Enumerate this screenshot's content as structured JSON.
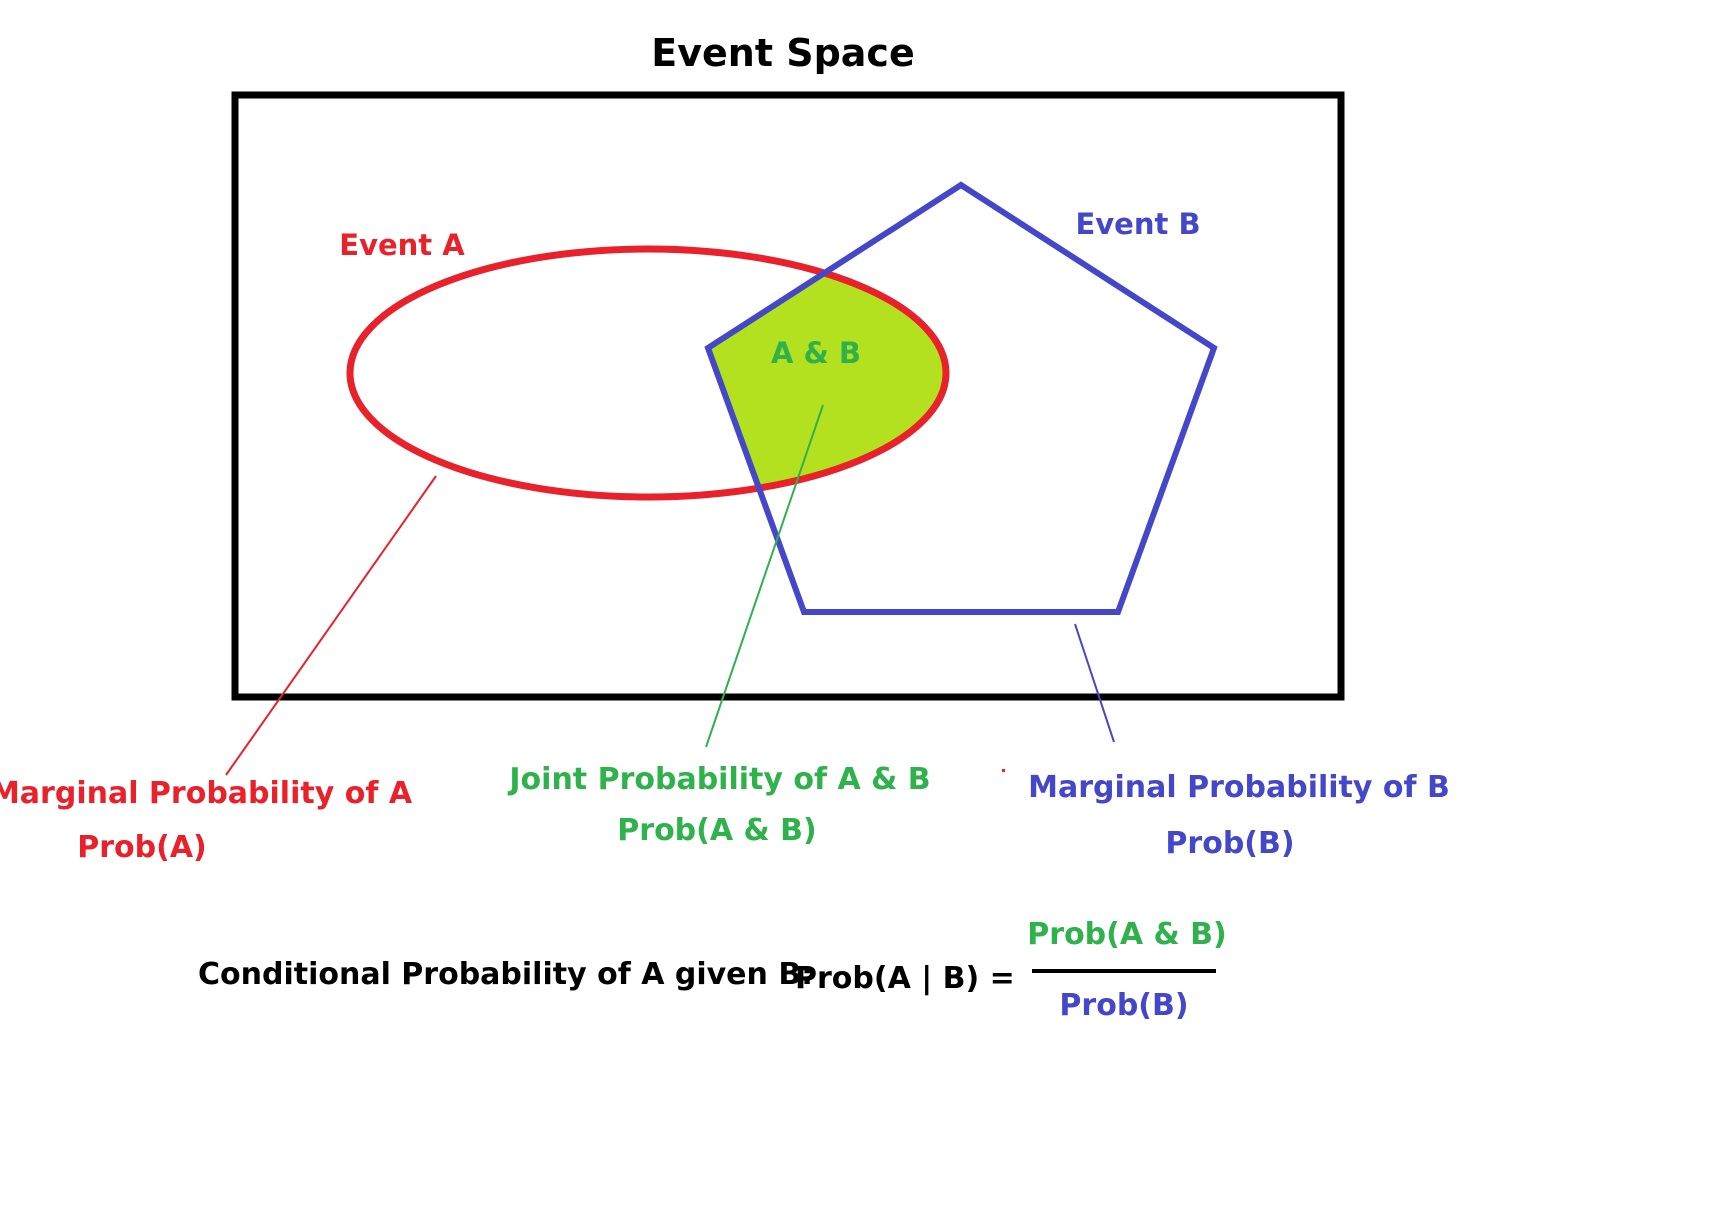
{
  "title": "Event Space",
  "event_a": {
    "label": "Event A",
    "color": "#e8212b"
  },
  "event_b": {
    "label": "Event B",
    "color": "#4448c8"
  },
  "intersection": {
    "label": "A & B",
    "fill_color": "#b3e11f",
    "text_color": "#2fb14b"
  },
  "marginal_a": {
    "line1": "Marginal Probability of A",
    "line2": "Prob(A)"
  },
  "joint": {
    "line1": "Joint Probability of A & B",
    "line2": "Prob(A & B)"
  },
  "marginal_b": {
    "line1": "Marginal Probability of B",
    "line2": "Prob(B)"
  },
  "formula": {
    "caption": "Conditional Probability of A given B:",
    "lhs": "Prob(A | B) =",
    "numerator": "Prob(A & B)",
    "denominator": "Prob(B)"
  },
  "colors": {
    "frame": "#000000",
    "joint_green": "#2fb14b",
    "text_black": "#000000"
  }
}
